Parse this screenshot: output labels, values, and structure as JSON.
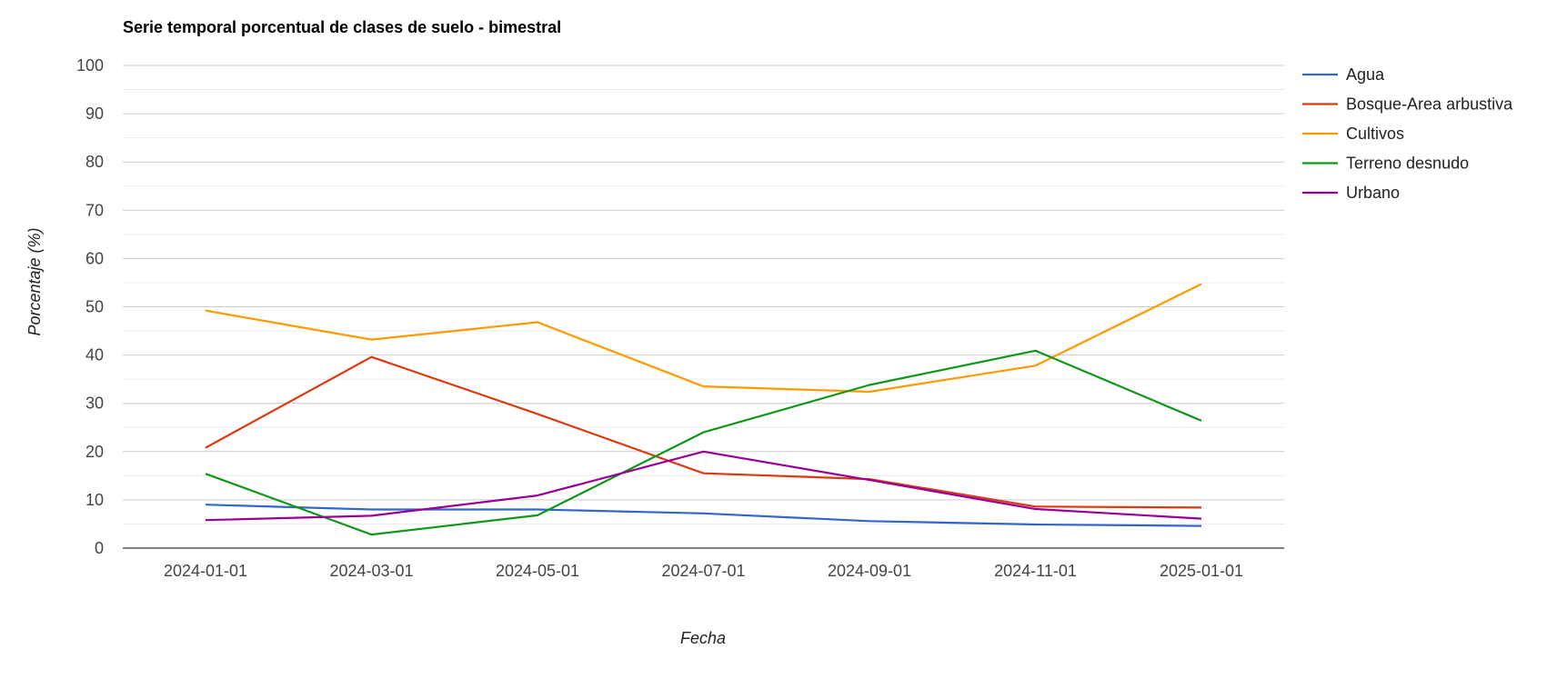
{
  "chart_data": {
    "type": "line",
    "title": "Serie temporal porcentual de clases de suelo - bimestral",
    "xlabel": "Fecha",
    "ylabel": "Porcentaje (%)",
    "categories": [
      "2024-01-01",
      "2024-03-01",
      "2024-05-01",
      "2024-07-01",
      "2024-09-01",
      "2024-11-01",
      "2025-01-01"
    ],
    "yticks": [
      "0",
      "10",
      "20",
      "30",
      "40",
      "50",
      "60",
      "70",
      "80",
      "90",
      "100"
    ],
    "ylim": [
      0,
      100
    ],
    "grid": true,
    "legend_position": "right",
    "series": [
      {
        "name": "Agua",
        "color": "#3366cc",
        "values": [
          9.0,
          8.0,
          8.0,
          7.2,
          5.6,
          4.9,
          4.6
        ]
      },
      {
        "name": "Bosque-Area arbustiva",
        "color": "#dc3912",
        "values": [
          20.8,
          39.6,
          27.8,
          15.5,
          14.3,
          8.6,
          8.4
        ]
      },
      {
        "name": "Cultivos",
        "color": "#ff9900",
        "values": [
          49.2,
          43.2,
          46.8,
          33.5,
          32.4,
          37.8,
          54.7
        ]
      },
      {
        "name": "Terreno desnudo",
        "color": "#109618",
        "values": [
          15.4,
          2.8,
          6.8,
          24.0,
          33.8,
          40.9,
          26.4
        ]
      },
      {
        "name": "Urbano",
        "color": "#990099",
        "values": [
          5.8,
          6.7,
          10.9,
          20.0,
          14.1,
          8.1,
          6.1
        ]
      }
    ]
  }
}
